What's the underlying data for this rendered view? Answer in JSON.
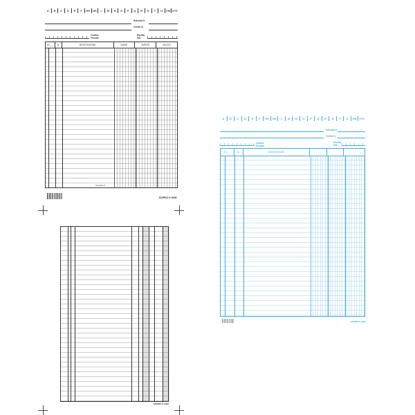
{
  "tabs": [
    "A",
    "B",
    "C",
    "D",
    "E",
    "F",
    "GH",
    "IJK",
    "L",
    "M",
    "N",
    "O",
    "P",
    "Q",
    "R",
    "S",
    "T",
    "U",
    "VW",
    "XYZ"
  ],
  "scheda_label": "Scheda N.",
  "conto_label": "Conto N.",
  "codice_fiscale_label": "Codice Fiscale",
  "partita_iva_label": "Partita IVA",
  "columns": {
    "year": "20___",
    "number": "N.",
    "description": "DESCRIZIONE",
    "dare": "DARE",
    "avere": "AVERE",
    "saldo": "SALDO"
  },
  "footer_note": "riportare €",
  "brand": "EDIPRO E 5008",
  "colors": {
    "black_form": "#333333",
    "blue_form": "#3fa9d8"
  }
}
